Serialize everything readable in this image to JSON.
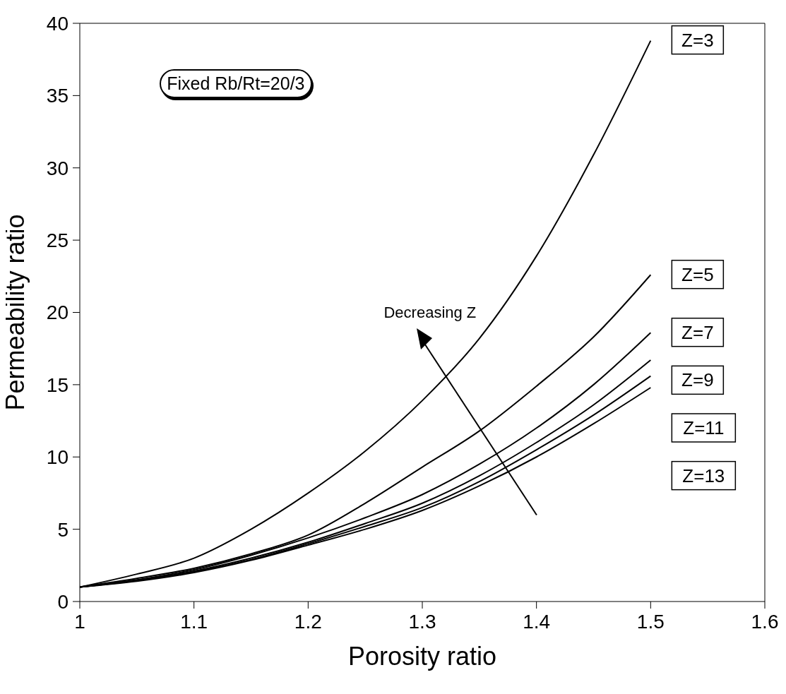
{
  "chart_data": {
    "type": "line",
    "xlabel": "Porosity ratio",
    "ylabel": "Permeability ratio",
    "x": [
      1,
      1.05,
      1.1,
      1.15,
      1.2,
      1.25,
      1.3,
      1.35,
      1.4,
      1.45,
      1.5
    ],
    "series": [
      {
        "name": "Z=3",
        "color": "#000000",
        "values": [
          1,
          1.9,
          3.0,
          5.0,
          7.5,
          10.4,
          13.9,
          18.2,
          23.9,
          30.9,
          38.8
        ]
      },
      {
        "name": "Z=5",
        "color": "#000000",
        "values": [
          1,
          1.6,
          2.3,
          3.3,
          4.6,
          6.8,
          9.3,
          11.8,
          14.9,
          18.3,
          22.6
        ]
      },
      {
        "name": "Z=7",
        "color": "#000000",
        "values": [
          1,
          1.5,
          2.2,
          3.2,
          4.4,
          5.8,
          7.4,
          9.5,
          12.0,
          15.0,
          18.6
        ]
      },
      {
        "name": "Z=9",
        "color": "#000000",
        "values": [
          1,
          1.45,
          2.1,
          3.0,
          4.1,
          5.4,
          6.8,
          8.7,
          11.0,
          13.6,
          16.7
        ]
      },
      {
        "name": "Z=11",
        "color": "#000000",
        "values": [
          1,
          1.45,
          2.05,
          2.9,
          4.0,
          5.2,
          6.5,
          8.3,
          10.5,
          12.9,
          15.6
        ]
      },
      {
        "name": "Z=13",
        "color": "#000000",
        "values": [
          1,
          1.4,
          2.0,
          2.85,
          3.9,
          5.0,
          6.3,
          8.0,
          10.0,
          12.3,
          14.8
        ]
      }
    ],
    "annotations": [
      "Fixed Rb/Rt=20/3",
      "Decreasing Z"
    ],
    "xlim": [
      1,
      1.6
    ],
    "xticks": [
      1,
      1.1,
      1.2,
      1.3,
      1.4,
      1.5,
      1.6
    ],
    "ylim": [
      0,
      40
    ],
    "yticks": [
      0,
      5,
      10,
      15,
      20,
      25,
      30,
      35,
      40
    ],
    "grid": false,
    "legend": false,
    "marker": "none",
    "line_style": "solid"
  }
}
